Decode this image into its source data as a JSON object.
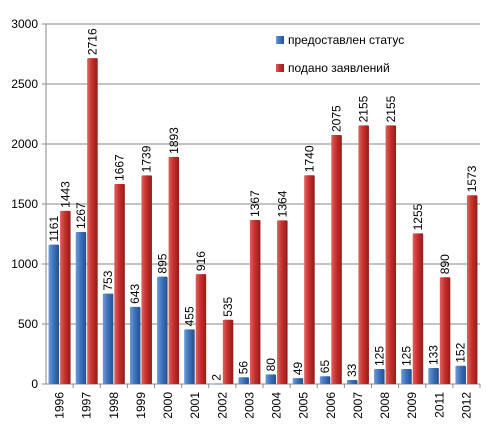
{
  "chart_data": {
    "type": "bar",
    "categories": [
      "1996",
      "1997",
      "1998",
      "1999",
      "2000",
      "2001",
      "2002",
      "2003",
      "2004",
      "2005",
      "2006",
      "2007",
      "2008",
      "2009",
      "2011",
      "2012"
    ],
    "series": [
      {
        "name": "предоставлен статус",
        "color": "#3a6fb6",
        "values": [
          1161,
          1267,
          753,
          643,
          895,
          455,
          2,
          56,
          80,
          49,
          65,
          33,
          125,
          125,
          133,
          152
        ]
      },
      {
        "name": "подано заявлений",
        "color": "#c8302e",
        "values": [
          1443,
          2716,
          1667,
          1739,
          1893,
          916,
          535,
          1367,
          1364,
          1740,
          2075,
          2155,
          2155,
          1255,
          890,
          1573
        ]
      }
    ],
    "ylim": [
      0,
      3000
    ],
    "yticks": [
      0,
      500,
      1000,
      1500,
      2000,
      2500,
      3000
    ],
    "grid": true,
    "legend_position": "top-right"
  }
}
